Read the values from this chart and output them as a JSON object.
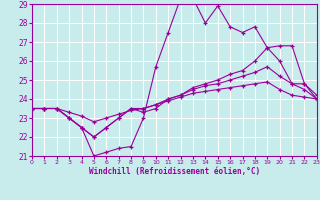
{
  "xlabel": "Windchill (Refroidissement éolien,°C)",
  "background_color": "#c8ecec",
  "grid_color": "#ffffff",
  "line_color": "#990099",
  "xlim": [
    0,
    23
  ],
  "ylim": [
    21,
    29
  ],
  "xticks": [
    0,
    1,
    2,
    3,
    4,
    5,
    6,
    7,
    8,
    9,
    10,
    11,
    12,
    13,
    14,
    15,
    16,
    17,
    18,
    19,
    20,
    21,
    22,
    23
  ],
  "yticks": [
    21,
    22,
    23,
    24,
    25,
    26,
    27,
    28,
    29
  ],
  "series": [
    [
      23.5,
      23.5,
      23.5,
      23.0,
      22.5,
      21.0,
      21.2,
      21.4,
      21.5,
      23.0,
      25.7,
      27.5,
      29.3,
      29.3,
      28.0,
      28.9,
      27.8,
      27.5,
      27.8,
      26.7,
      26.0,
      24.8,
      24.8,
      24.0
    ],
    [
      23.5,
      23.5,
      23.5,
      23.0,
      22.5,
      22.0,
      22.5,
      23.0,
      23.5,
      23.3,
      23.5,
      24.0,
      24.2,
      24.6,
      24.8,
      25.0,
      25.3,
      25.5,
      26.0,
      26.7,
      26.8,
      26.8,
      24.8,
      24.2
    ],
    [
      23.5,
      23.5,
      23.5,
      23.0,
      22.5,
      22.0,
      22.5,
      23.0,
      23.5,
      23.5,
      23.7,
      24.0,
      24.2,
      24.5,
      24.7,
      24.8,
      25.0,
      25.2,
      25.4,
      25.7,
      25.2,
      24.8,
      24.5,
      24.0
    ],
    [
      23.5,
      23.5,
      23.5,
      23.3,
      23.1,
      22.8,
      23.0,
      23.2,
      23.4,
      23.5,
      23.7,
      23.9,
      24.1,
      24.3,
      24.4,
      24.5,
      24.6,
      24.7,
      24.8,
      24.9,
      24.5,
      24.2,
      24.1,
      24.0
    ]
  ]
}
